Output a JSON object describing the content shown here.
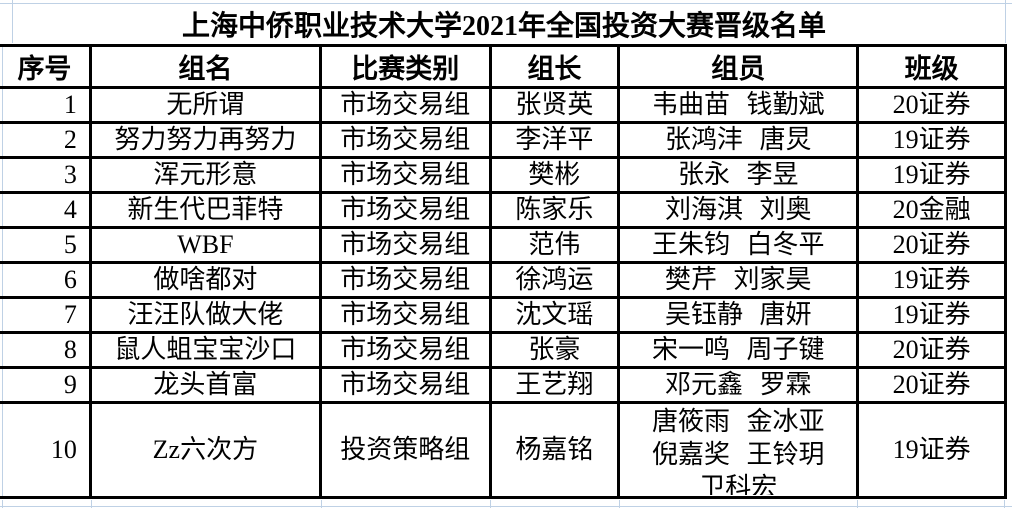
{
  "title": "上海中侨职业技术大学2021年全国投资大赛晋级名单",
  "table": {
    "headers": [
      "序号",
      "组名",
      "比赛类别",
      "组长",
      "组员",
      "班级"
    ],
    "rows": [
      {
        "no": "1",
        "group": "无所谓",
        "category": "市场交易组",
        "leader": "张贤英",
        "members": "韦曲苗 钱勤斌",
        "class": "20证券"
      },
      {
        "no": "2",
        "group": "努力努力再努力",
        "category": "市场交易组",
        "leader": "李洋平",
        "members": "张鸿沣 唐炅",
        "class": "19证券"
      },
      {
        "no": "3",
        "group": "浑元形意",
        "category": "市场交易组",
        "leader": "樊彬",
        "members": "张永 李昱",
        "class": "19证券"
      },
      {
        "no": "4",
        "group": "新生代巴菲特",
        "category": "市场交易组",
        "leader": "陈家乐",
        "members": "刘海淇 刘奥",
        "class": "20金融"
      },
      {
        "no": "5",
        "group": "WBF",
        "category": "市场交易组",
        "leader": "范伟",
        "members": "王朱钧 白冬平",
        "class": "20证券"
      },
      {
        "no": "6",
        "group": "做啥都对",
        "category": "市场交易组",
        "leader": "徐鸿运",
        "members": "樊芹 刘家昊",
        "class": "19证券"
      },
      {
        "no": "7",
        "group": "汪汪队做大佬",
        "category": "市场交易组",
        "leader": "沈文瑶",
        "members": "吴钰静 唐妍",
        "class": "19证券"
      },
      {
        "no": "8",
        "group": "鼠人蛆宝宝沙口",
        "category": "市场交易组",
        "leader": "张豪",
        "members": "宋一鸣 周子键",
        "class": "20证券"
      },
      {
        "no": "9",
        "group": "龙头首富",
        "category": "市场交易组",
        "leader": "王艺翔",
        "members": "邓元鑫 罗霖",
        "class": "20证券"
      },
      {
        "no": "10",
        "group": "Zz六次方",
        "category": "投资策略组",
        "leader": "杨嘉铭",
        "members": "唐筱雨 金冰亚\n倪嘉奖 王铃玥\n卫科宏",
        "class": "19证券"
      }
    ]
  },
  "colors": {
    "background": "#ffffff",
    "text": "#000000",
    "table_border": "#000000",
    "sheet_gridline": "#bfd1e5"
  }
}
